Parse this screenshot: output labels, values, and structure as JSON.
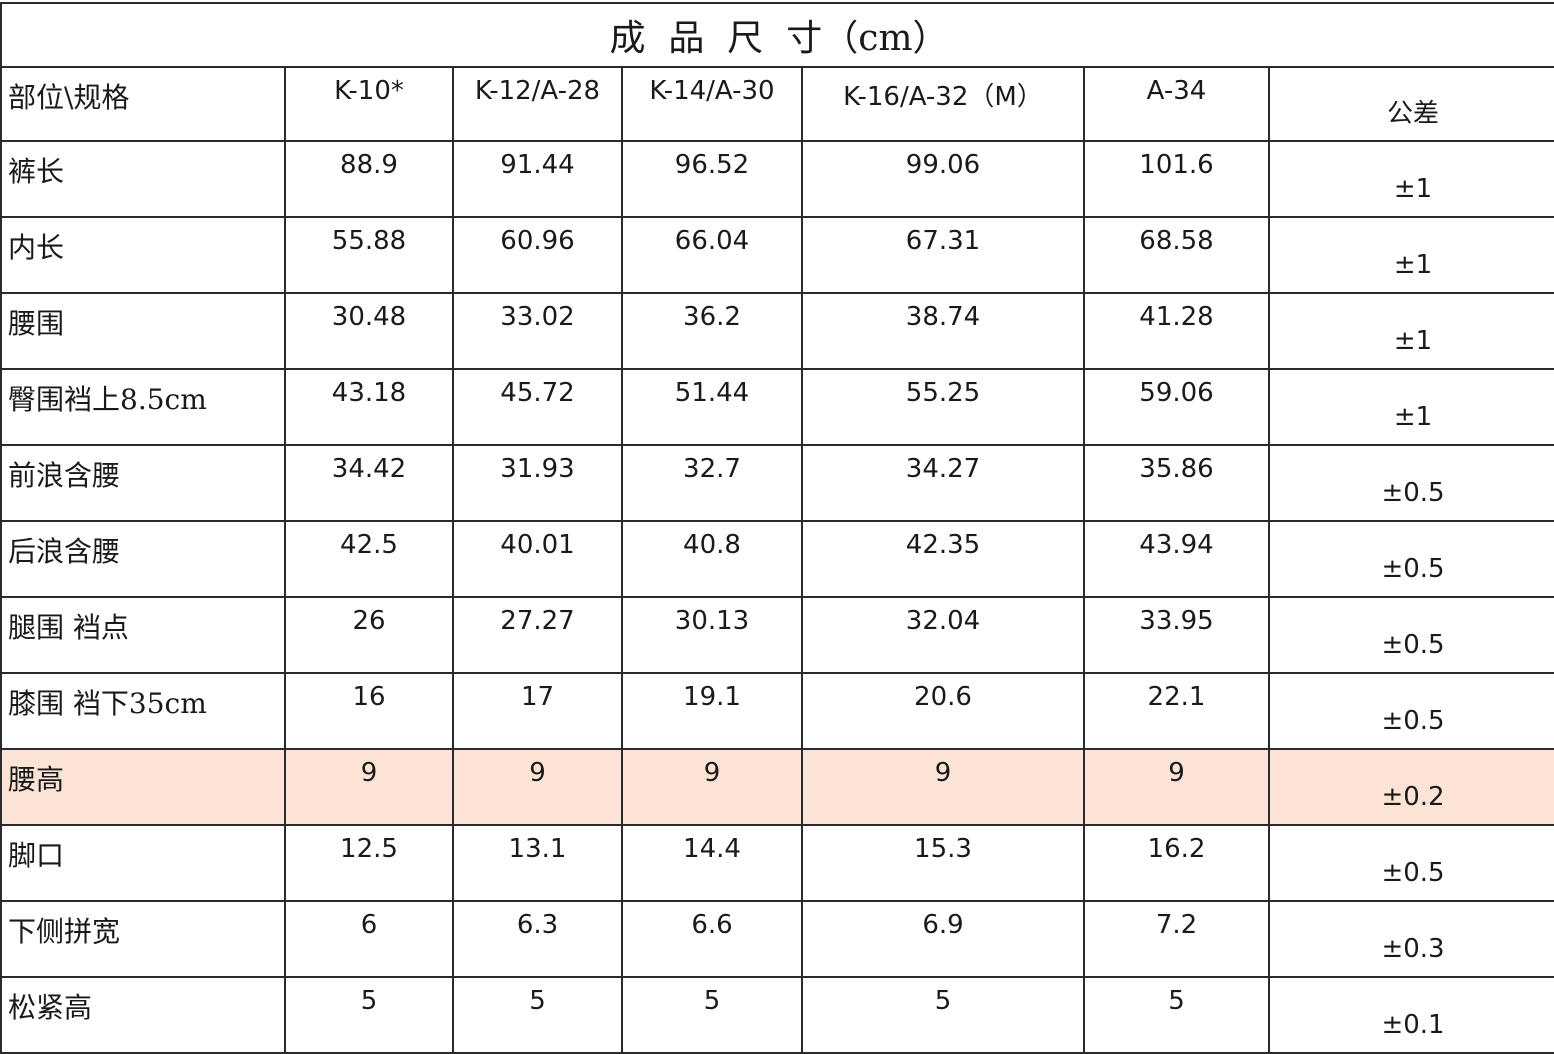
{
  "title": "成  品  尺  寸（cm）",
  "header": {
    "label": "部位\\规格",
    "sizes": [
      "K-10*",
      "K-12/A-28",
      "K-14/A-30",
      "K-16/A-32（M）",
      "A-34"
    ],
    "tolerance": "公差"
  },
  "rows": [
    {
      "label": "裤长",
      "values": [
        "88.9",
        "91.44",
        "96.52",
        "99.06",
        "101.6"
      ],
      "tolerance": "±1"
    },
    {
      "label": "内长",
      "values": [
        "55.88",
        "60.96",
        "66.04",
        "67.31",
        "68.58"
      ],
      "tolerance": "±1"
    },
    {
      "label": "腰围",
      "values": [
        "30.48",
        "33.02",
        "36.2",
        "38.74",
        "41.28"
      ],
      "tolerance": "±1"
    },
    {
      "label": "臀围裆上8.5cm",
      "values": [
        "43.18",
        "45.72",
        "51.44",
        "55.25",
        "59.06"
      ],
      "tolerance": "±1"
    },
    {
      "label": "前浪含腰",
      "values": [
        "34.42",
        "31.93",
        "32.7",
        "34.27",
        "35.86"
      ],
      "tolerance": "±0.5"
    },
    {
      "label": "后浪含腰",
      "values": [
        "42.5",
        "40.01",
        "40.8",
        "42.35",
        "43.94"
      ],
      "tolerance": "±0.5"
    },
    {
      "label": "腿围  裆点",
      "values": [
        "26",
        "27.27",
        "30.13",
        "32.04",
        "33.95"
      ],
      "tolerance": "±0.5"
    },
    {
      "label": "膝围  裆下35cm",
      "values": [
        "16",
        "17",
        "19.1",
        "20.6",
        "22.1"
      ],
      "tolerance": "±0.5"
    },
    {
      "label": "腰高",
      "values": [
        "9",
        "9",
        "9",
        "9",
        "9"
      ],
      "tolerance": "±0.2",
      "highlighted": true
    },
    {
      "label": "脚口",
      "values": [
        "12.5",
        "13.1",
        "14.4",
        "15.3",
        "16.2"
      ],
      "tolerance": "±0.5"
    },
    {
      "label": "下侧拼宽",
      "values": [
        "6",
        "6.3",
        "6.6",
        "6.9",
        "7.2"
      ],
      "tolerance": "±0.3"
    },
    {
      "label": "松紧高",
      "values": [
        "5",
        "5",
        "5",
        "5",
        "5"
      ],
      "tolerance": "±0.1"
    }
  ],
  "colors": {
    "highlight_row": "#fbe4d5",
    "border": "#2b2b2b"
  }
}
